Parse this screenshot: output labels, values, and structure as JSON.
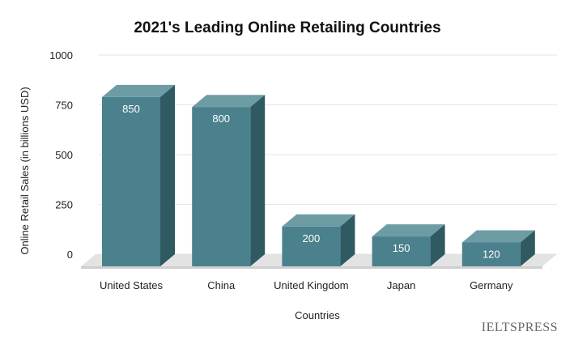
{
  "chart_data": {
    "type": "bar",
    "title": "2021's Leading Online Retailing Countries",
    "xlabel": "Countries",
    "ylabel": "Online Retail Sales (in billions USD)",
    "categories": [
      "United States",
      "China",
      "United Kingdom",
      "Japan",
      "Germany"
    ],
    "values": [
      850,
      800,
      200,
      150,
      120
    ],
    "data_labels": [
      "850",
      "800",
      "200",
      "150",
      "120"
    ],
    "yticks": [
      0,
      250,
      500,
      750,
      1000
    ],
    "ytick_labels": [
      "0",
      "250",
      "500",
      "750",
      "1000"
    ],
    "ylim": [
      0,
      1000
    ],
    "grid": true,
    "bar_style": "3d",
    "colors": {
      "front": "#4a818c",
      "top": "#6d9ca5",
      "side": "#2f5a62",
      "floor": "#e3e3e3",
      "grid": "#e6e6e6"
    }
  },
  "watermark": "IELTSPRESS"
}
